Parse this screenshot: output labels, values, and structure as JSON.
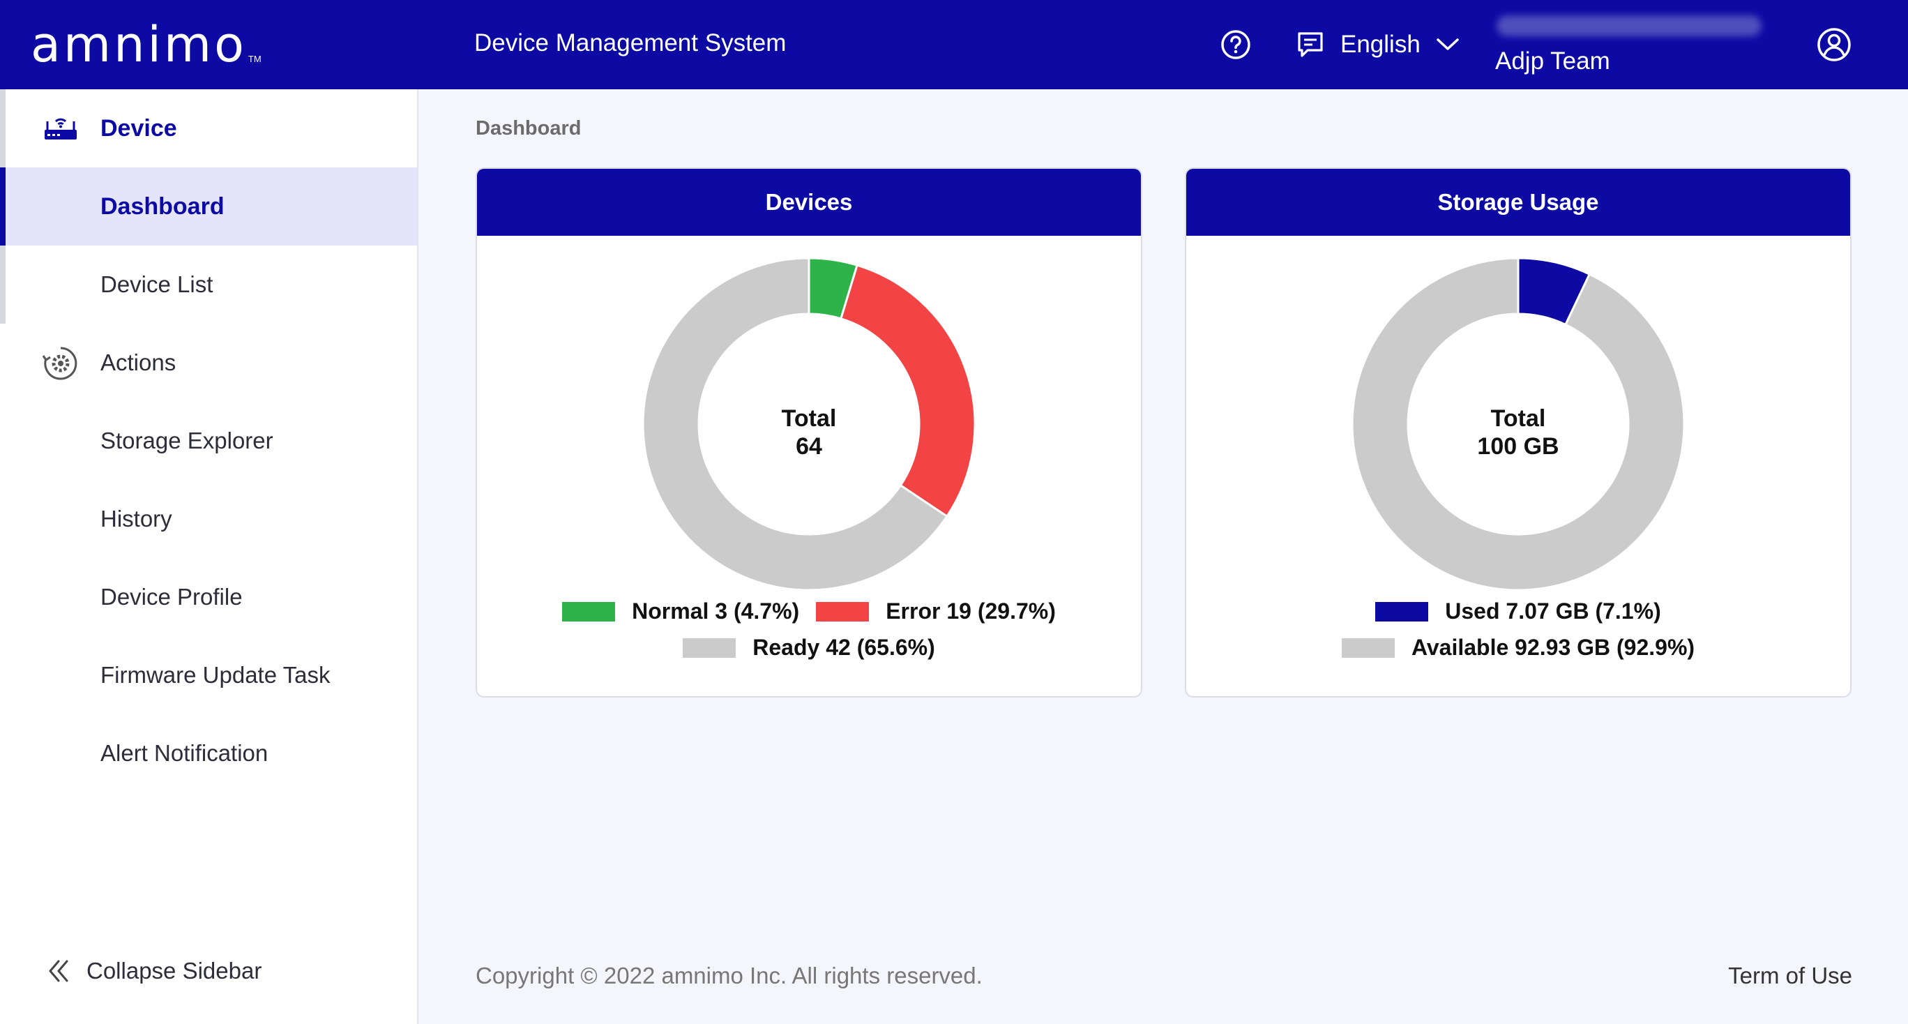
{
  "header": {
    "logo": "amnimo",
    "logo_tm": "TM",
    "app_title": "Device Management System",
    "language": "English",
    "team": "Adjp Team",
    "icons": {
      "help": "help-circle-icon",
      "language": "chat-icon",
      "account": "account-circle-icon"
    }
  },
  "sidebar": {
    "items": [
      {
        "label": "Device",
        "icon": "router-icon",
        "type": "group"
      },
      {
        "label": "Dashboard",
        "type": "active"
      },
      {
        "label": "Device List"
      },
      {
        "label": "Actions",
        "icon": "gear-refresh-icon",
        "type": "plain"
      },
      {
        "label": "Storage Explorer"
      },
      {
        "label": "History"
      },
      {
        "label": "Device Profile"
      },
      {
        "label": "Firmware Update Task"
      },
      {
        "label": "Alert Notification"
      }
    ],
    "collapse_label": "Collapse Sidebar"
  },
  "breadcrumb": "Dashboard",
  "cards": {
    "devices": {
      "title": "Devices",
      "center_label": "Total",
      "center_value": "64",
      "legend": [
        "Normal 3 (4.7%)",
        "Error 19 (29.7%)",
        "Ready 42 (65.6%)"
      ]
    },
    "storage": {
      "title": "Storage Usage",
      "center_label": "Total",
      "center_value": "100 GB",
      "legend": [
        "Used 7.07 GB (7.1%)",
        "Available 92.93 GB (92.9%)"
      ]
    }
  },
  "chart_data": [
    {
      "type": "pie",
      "title": "Devices",
      "categories": [
        "Normal",
        "Error",
        "Ready"
      ],
      "values": [
        3,
        19,
        42
      ],
      "colors": [
        "#2db34a",
        "#f24444",
        "#cbcbcb"
      ]
    },
    {
      "type": "pie",
      "title": "Storage Usage",
      "categories": [
        "Used",
        "Available"
      ],
      "values": [
        7.07,
        92.93
      ],
      "colors": [
        "#0c0aa3",
        "#cbcbcb"
      ]
    }
  ],
  "footer": {
    "copyright": "Copyright © 2022 amnimo Inc. All rights reserved.",
    "terms": "Term of Use"
  }
}
